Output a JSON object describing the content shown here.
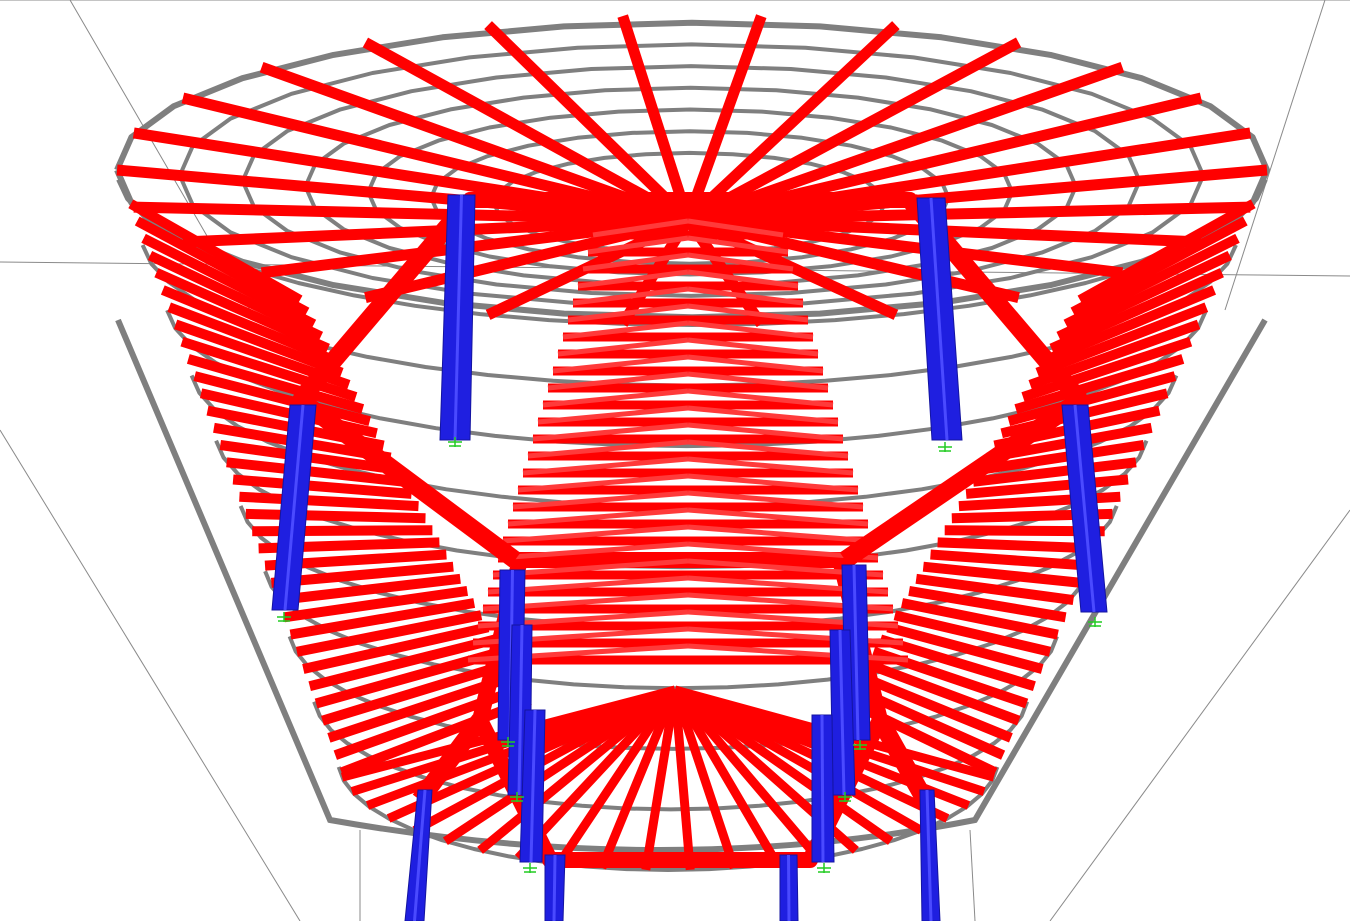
{
  "view": {
    "kind": "3d-structural-model-viewport",
    "projection": "perspective"
  },
  "colors": {
    "background": "#ffffff",
    "grid_lines": "#8a8a8a",
    "secondary_ring_beams": "#7f7f7f",
    "primary_beams": "#ff0000",
    "primary_beam_highlight": "#ff3a3a",
    "columns": "#1f1fe0",
    "column_highlight": "#4a4aff",
    "support_markers": "#22cc22"
  },
  "model": {
    "element_groups": [
      {
        "name": "radial-rafters",
        "color_key": "primary_beams"
      },
      {
        "name": "ring-purlins",
        "color_key": "secondary_ring_beams"
      },
      {
        "name": "columns",
        "color_key": "columns"
      },
      {
        "name": "supports",
        "color_key": "support_markers"
      }
    ],
    "column_count": 14,
    "support_count": 10
  }
}
